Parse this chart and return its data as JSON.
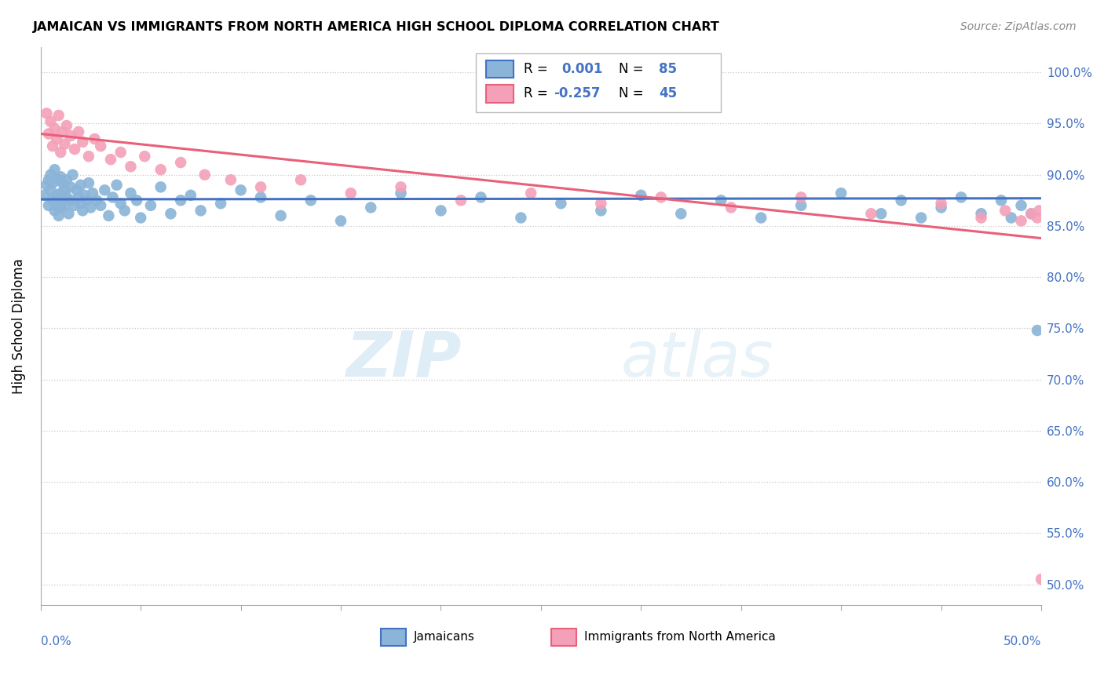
{
  "title": "JAMAICAN VS IMMIGRANTS FROM NORTH AMERICA HIGH SCHOOL DIPLOMA CORRELATION CHART",
  "source": "Source: ZipAtlas.com",
  "ylabel": "High School Diploma",
  "xmin": 0.0,
  "xmax": 0.5,
  "ymin": 0.48,
  "ymax": 1.025,
  "blue_color": "#8ab4d8",
  "pink_color": "#f4a0b8",
  "blue_line_color": "#4472c4",
  "pink_line_color": "#e8607a",
  "watermark_color": "#cce4f4",
  "y_ticks": [
    0.5,
    0.55,
    0.6,
    0.65,
    0.7,
    0.75,
    0.8,
    0.85,
    0.9,
    0.95,
    1.0
  ],
  "y_tick_labels": [
    "50.0%",
    "55.0%",
    "60.0%",
    "65.0%",
    "70.0%",
    "75.0%",
    "80.0%",
    "85.0%",
    "90.0%",
    "95.0%",
    "100.0%"
  ],
  "blue_x": [
    0.002,
    0.003,
    0.004,
    0.004,
    0.005,
    0.005,
    0.006,
    0.006,
    0.007,
    0.007,
    0.008,
    0.008,
    0.009,
    0.009,
    0.01,
    0.01,
    0.01,
    0.011,
    0.011,
    0.012,
    0.012,
    0.013,
    0.013,
    0.014,
    0.015,
    0.015,
    0.016,
    0.017,
    0.018,
    0.019,
    0.02,
    0.02,
    0.021,
    0.022,
    0.023,
    0.024,
    0.025,
    0.026,
    0.028,
    0.03,
    0.032,
    0.034,
    0.036,
    0.038,
    0.04,
    0.042,
    0.045,
    0.048,
    0.05,
    0.055,
    0.06,
    0.065,
    0.07,
    0.075,
    0.08,
    0.09,
    0.1,
    0.11,
    0.12,
    0.135,
    0.15,
    0.165,
    0.18,
    0.2,
    0.22,
    0.24,
    0.26,
    0.28,
    0.3,
    0.32,
    0.34,
    0.36,
    0.38,
    0.4,
    0.42,
    0.43,
    0.44,
    0.45,
    0.46,
    0.47,
    0.48,
    0.485,
    0.49,
    0.495,
    0.498
  ],
  "blue_y": [
    0.88,
    0.89,
    0.87,
    0.895,
    0.885,
    0.9,
    0.875,
    0.892,
    0.865,
    0.905,
    0.88,
    0.87,
    0.895,
    0.86,
    0.882,
    0.898,
    0.868,
    0.875,
    0.892,
    0.885,
    0.87,
    0.878,
    0.895,
    0.862,
    0.888,
    0.875,
    0.9,
    0.87,
    0.885,
    0.878,
    0.872,
    0.89,
    0.865,
    0.88,
    0.875,
    0.892,
    0.868,
    0.882,
    0.875,
    0.87,
    0.885,
    0.86,
    0.878,
    0.89,
    0.872,
    0.865,
    0.882,
    0.875,
    0.858,
    0.87,
    0.888,
    0.862,
    0.875,
    0.88,
    0.865,
    0.872,
    0.885,
    0.878,
    0.86,
    0.875,
    0.855,
    0.868,
    0.882,
    0.865,
    0.878,
    0.858,
    0.872,
    0.865,
    0.88,
    0.862,
    0.875,
    0.858,
    0.87,
    0.882,
    0.862,
    0.875,
    0.858,
    0.868,
    0.878,
    0.862,
    0.875,
    0.858,
    0.87,
    0.862,
    0.748
  ],
  "pink_x": [
    0.003,
    0.004,
    0.005,
    0.006,
    0.007,
    0.008,
    0.009,
    0.01,
    0.011,
    0.012,
    0.013,
    0.015,
    0.017,
    0.019,
    0.021,
    0.024,
    0.027,
    0.03,
    0.035,
    0.04,
    0.045,
    0.052,
    0.06,
    0.07,
    0.082,
    0.095,
    0.11,
    0.13,
    0.155,
    0.18,
    0.21,
    0.245,
    0.28,
    0.31,
    0.345,
    0.38,
    0.415,
    0.45,
    0.47,
    0.482,
    0.49,
    0.495,
    0.498,
    0.499,
    0.5
  ],
  "pink_y": [
    0.96,
    0.94,
    0.952,
    0.928,
    0.945,
    0.935,
    0.958,
    0.922,
    0.942,
    0.93,
    0.948,
    0.938,
    0.925,
    0.942,
    0.932,
    0.918,
    0.935,
    0.928,
    0.915,
    0.922,
    0.908,
    0.918,
    0.905,
    0.912,
    0.9,
    0.895,
    0.888,
    0.895,
    0.882,
    0.888,
    0.875,
    0.882,
    0.872,
    0.878,
    0.868,
    0.878,
    0.862,
    0.872,
    0.858,
    0.865,
    0.855,
    0.862,
    0.858,
    0.865,
    0.505
  ],
  "blue_trend_y0": 0.876,
  "blue_trend_y1": 0.877,
  "pink_trend_y0": 0.94,
  "pink_trend_y1": 0.838
}
